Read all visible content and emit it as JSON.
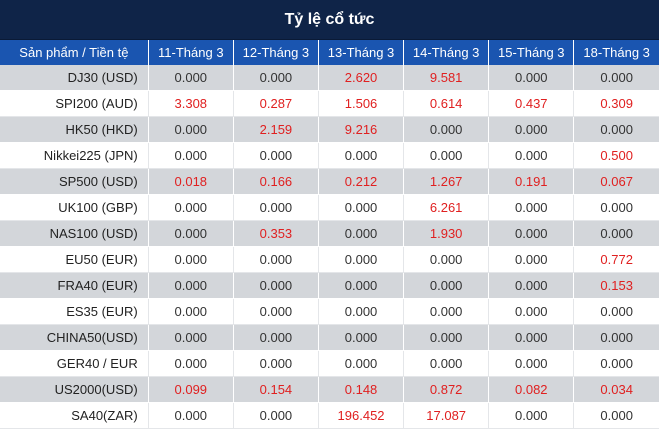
{
  "title": "Tỷ lệ cổ tức",
  "header": {
    "product_col": "Sản phẩm / Tiền tệ",
    "dates": [
      "11-Tháng 3",
      "12-Tháng 3",
      "13-Tháng 3",
      "14-Tháng 3",
      "15-Tháng 3",
      "18-Tháng 3"
    ]
  },
  "rows": [
    {
      "product": "DJ30 (USD)",
      "values": [
        "0.000",
        "0.000",
        "2.620",
        "9.581",
        "0.000",
        "0.000"
      ]
    },
    {
      "product": "SPI200 (AUD)",
      "values": [
        "3.308",
        "0.287",
        "1.506",
        "0.614",
        "0.437",
        "0.309"
      ]
    },
    {
      "product": "HK50 (HKD)",
      "values": [
        "0.000",
        "2.159",
        "9.216",
        "0.000",
        "0.000",
        "0.000"
      ]
    },
    {
      "product": "Nikkei225 (JPN)",
      "values": [
        "0.000",
        "0.000",
        "0.000",
        "0.000",
        "0.000",
        "0.500"
      ]
    },
    {
      "product": "SP500 (USD)",
      "values": [
        "0.018",
        "0.166",
        "0.212",
        "1.267",
        "0.191",
        "0.067"
      ]
    },
    {
      "product": "UK100 (GBP)",
      "values": [
        "0.000",
        "0.000",
        "0.000",
        "6.261",
        "0.000",
        "0.000"
      ]
    },
    {
      "product": "NAS100 (USD)",
      "values": [
        "0.000",
        "0.353",
        "0.000",
        "1.930",
        "0.000",
        "0.000"
      ]
    },
    {
      "product": "EU50 (EUR)",
      "values": [
        "0.000",
        "0.000",
        "0.000",
        "0.000",
        "0.000",
        "0.772"
      ]
    },
    {
      "product": "FRA40 (EUR)",
      "values": [
        "0.000",
        "0.000",
        "0.000",
        "0.000",
        "0.000",
        "0.153"
      ]
    },
    {
      "product": "ES35 (EUR)",
      "values": [
        "0.000",
        "0.000",
        "0.000",
        "0.000",
        "0.000",
        "0.000"
      ]
    },
    {
      "product": "CHINA50(USD)",
      "values": [
        "0.000",
        "0.000",
        "0.000",
        "0.000",
        "0.000",
        "0.000"
      ]
    },
    {
      "product": "GER40 / EUR",
      "values": [
        "0.000",
        "0.000",
        "0.000",
        "0.000",
        "0.000",
        "0.000"
      ]
    },
    {
      "product": "US2000(USD)",
      "values": [
        "0.099",
        "0.154",
        "0.148",
        "0.872",
        "0.082",
        "0.034"
      ]
    },
    {
      "product": "SA40(ZAR)",
      "values": [
        "0.000",
        "0.000",
        "196.452",
        "17.087",
        "0.000",
        "0.000"
      ]
    }
  ],
  "colors": {
    "title_bg": "#0f2448",
    "header_bg": "#1a55b0",
    "row_alt_bg": "#d3d6da",
    "positive_value": "#e02020",
    "zero_value": "#333333"
  }
}
